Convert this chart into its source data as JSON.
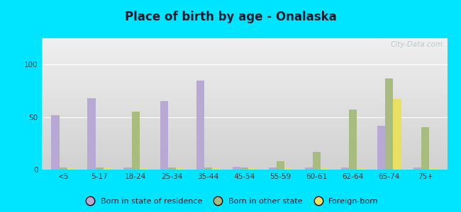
{
  "title": "Place of birth by age - Onalaska",
  "categories": [
    "<5",
    "5-17",
    "18-24",
    "25-34",
    "35-44",
    "45-54",
    "55-59",
    "60-61",
    "62-64",
    "65-74",
    "75+"
  ],
  "born_in_state": [
    52,
    68,
    2,
    65,
    85,
    3,
    2,
    2,
    2,
    42,
    2
  ],
  "born_other_state": [
    2,
    2,
    55,
    2,
    2,
    2,
    8,
    17,
    57,
    87,
    40
  ],
  "foreign_born": [
    2,
    2,
    2,
    2,
    2,
    2,
    2,
    2,
    2,
    67,
    2
  ],
  "color_state": "#b8a9d4",
  "color_other": "#a8bc80",
  "color_foreign": "#e8e060",
  "outer_bg": "#00e5ff",
  "ylim": [
    0,
    125
  ],
  "yticks": [
    0,
    50,
    100
  ],
  "watermark": "City-Data.com",
  "legend_labels": [
    "Born in state of residence",
    "Born in other state",
    "Foreign-born"
  ],
  "title_color": "#1a1a2e",
  "tick_color": "#333333"
}
